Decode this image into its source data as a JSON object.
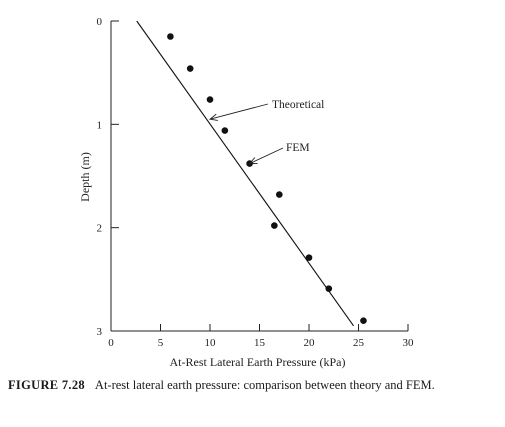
{
  "chart_data": {
    "type": "scatter",
    "xlabel": "At-Rest Lateral Earth Pressure (kPa)",
    "ylabel": "Depth (m)",
    "xlim": [
      0,
      30
    ],
    "ylim": [
      0,
      3
    ],
    "y_inverted": true,
    "x_ticks": [
      "0",
      "5",
      "10",
      "15",
      "20",
      "25",
      "30"
    ],
    "y_ticks": [
      "0",
      "1",
      "2",
      "3"
    ],
    "series": [
      {
        "name": "FEM",
        "kind": "points",
        "x": [
          6,
          8,
          10,
          11.5,
          14,
          17,
          16.5,
          20,
          22,
          25.5
        ],
        "y": [
          0.15,
          0.46,
          0.76,
          1.06,
          1.38,
          1.68,
          1.98,
          2.29,
          2.59,
          2.9
        ]
      },
      {
        "name": "Theoretical",
        "kind": "line",
        "x": [
          2.6,
          24.5
        ],
        "y": [
          0,
          2.95
        ]
      }
    ],
    "annotations": [
      {
        "text": "Theoretical",
        "arrow_to": [
          10,
          0.95
        ]
      },
      {
        "text": "FEM",
        "arrow_to": [
          14,
          1.38
        ]
      }
    ]
  },
  "caption": {
    "number": "FIGURE 7.28",
    "text": "At-rest lateral earth pressure: comparison between theory and FEM."
  }
}
